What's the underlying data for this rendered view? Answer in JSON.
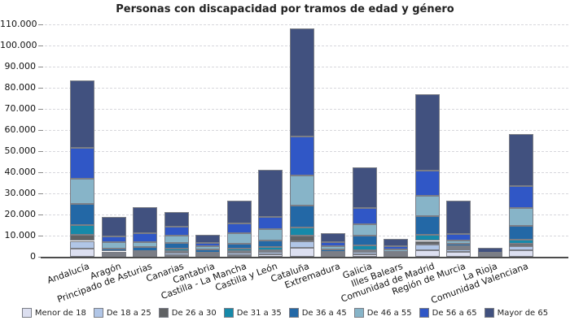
{
  "title": "Personas con discapacidad por tramos de edad y género",
  "colors": {
    "background": "#ffffff",
    "grid": "#d7d7dc",
    "axis": "#4c4c4c",
    "bar_border": "#7b7e86",
    "text": "#111111"
  },
  "chart_data": {
    "type": "bar",
    "stacked": true,
    "title": "Personas con discapacidad por tramos de edad y género",
    "xlabel": "",
    "ylabel": "",
    "ylim": [
      0,
      110000
    ],
    "ytick_step": 10000,
    "ytick_labels": [
      "0",
      "10.000",
      "20.000",
      "30.000",
      "40.000",
      "50.000",
      "60.000",
      "70.000",
      "80.000",
      "90.000",
      "100.000",
      "110.000"
    ],
    "grid": "horizontal-dashed",
    "legend_position": "bottom",
    "categories": [
      "Andalucía",
      "Aragón",
      "Principado de Asturias",
      "Canarias",
      "Cantabria",
      "Castilla - La Mancha",
      "Castilla y León",
      "Cataluña",
      "Extremadura",
      "Galicia",
      "Illes Balears",
      "Comunidad de Madrid",
      "Región de Murcia",
      "La Rioja",
      "Comunidad Valenciana"
    ],
    "series": [
      {
        "name": "Menor de 18",
        "color": "#dcdff0",
        "values": [
          4000,
          500,
          600,
          900,
          500,
          900,
          1000,
          4200,
          400,
          1000,
          300,
          3000,
          2200,
          300,
          3100
        ]
      },
      {
        "name": "De 18 a 25",
        "color": "#b1c6e7",
        "values": [
          3500,
          500,
          700,
          1000,
          500,
          900,
          1200,
          3200,
          600,
          1200,
          400,
          2800,
          1300,
          300,
          1900
        ]
      },
      {
        "name": "De 26 a 30",
        "color": "#606264",
        "values": [
          3000,
          800,
          700,
          800,
          400,
          900,
          1000,
          2600,
          700,
          1000,
          300,
          1700,
          800,
          150,
          1000
        ]
      },
      {
        "name": "De 31 a 35",
        "color": "#1689a9",
        "values": [
          4600,
          700,
          800,
          1200,
          500,
          1100,
          1300,
          3800,
          600,
          2300,
          400,
          2800,
          700,
          150,
          2100
        ]
      },
      {
        "name": "De 36 a 45",
        "color": "#2368a6",
        "values": [
          10000,
          1500,
          1700,
          2600,
          1400,
          2500,
          3100,
          10600,
          1300,
          4500,
          900,
          8900,
          1300,
          300,
          6400
        ]
      },
      {
        "name": "De 46 a 55",
        "color": "#87b4c8",
        "values": [
          11900,
          2800,
          2600,
          3500,
          1600,
          4700,
          5600,
          14000,
          1300,
          5500,
          1200,
          9600,
          1300,
          300,
          8600
        ]
      },
      {
        "name": "De 56 a 65",
        "color": "#3057c6",
        "values": [
          14500,
          3000,
          3900,
          4100,
          1500,
          4800,
          5800,
          18400,
          1900,
          7500,
          1600,
          12000,
          3300,
          400,
          10200
        ]
      },
      {
        "name": "Mayor de 65",
        "color": "#41517f",
        "values": [
          32000,
          9200,
          12500,
          6900,
          4100,
          10700,
          22000,
          51200,
          4400,
          19500,
          3400,
          36200,
          15600,
          2300,
          24700
        ]
      }
    ]
  }
}
